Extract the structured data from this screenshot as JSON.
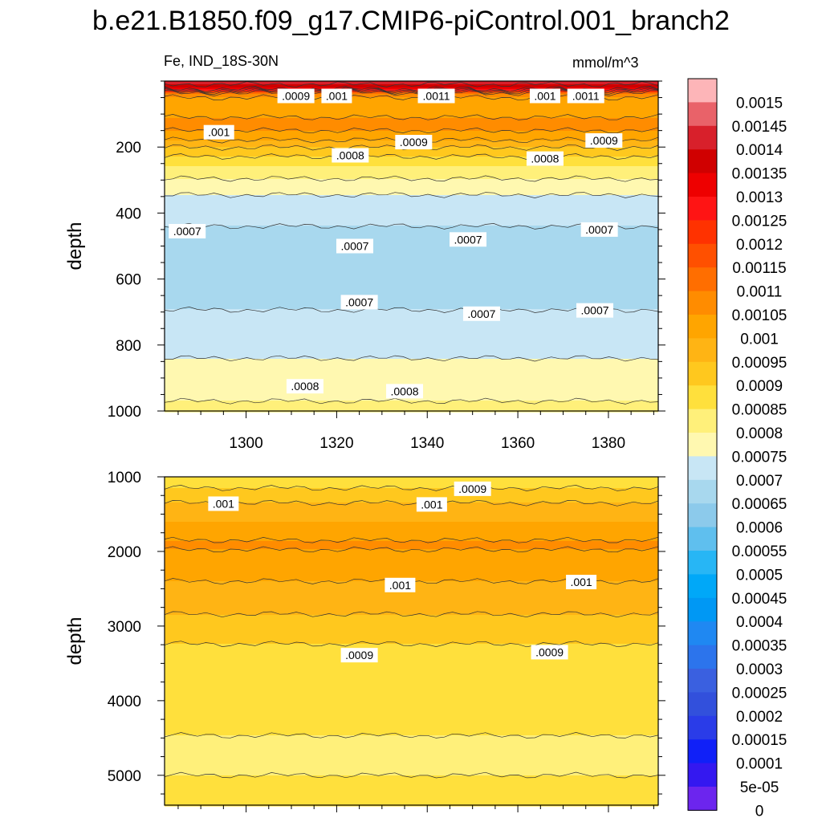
{
  "title": "b.e21.B1850.f09_g17.CMIP6-piControl.001_branch2",
  "left_string": "Fe, IND_18S-30N",
  "right_string": "mmol/m^3",
  "chart_data": [
    {
      "type": "heatmap",
      "panel": "upper",
      "variable": "Fe",
      "region": "IND_18S-30N",
      "units": "mmol/m^3",
      "xlabel": "",
      "ylabel": "depth",
      "xlim": [
        1282,
        1391
      ],
      "ylim": [
        1000,
        0
      ],
      "xticks": [
        1300,
        1320,
        1340,
        1360,
        1380
      ],
      "xtick_labels": [
        "1300",
        "1320",
        "1340",
        "1360",
        "1380"
      ],
      "yticks": [
        200,
        400,
        600,
        800,
        1000
      ],
      "ytick_labels": [
        "200",
        "400",
        "600",
        "800",
        "1000"
      ],
      "depth_profile": [
        {
          "depth": 0,
          "value": 0.00145
        },
        {
          "depth": 20,
          "value": 0.00135
        },
        {
          "depth": 40,
          "value": 0.0011
        },
        {
          "depth": 60,
          "value": 0.001
        },
        {
          "depth": 90,
          "value": 0.00102
        },
        {
          "depth": 130,
          "value": 0.00108
        },
        {
          "depth": 170,
          "value": 0.00102
        },
        {
          "depth": 210,
          "value": 0.00093
        },
        {
          "depth": 260,
          "value": 0.00085
        },
        {
          "depth": 310,
          "value": 0.00078
        },
        {
          "depth": 380,
          "value": 0.00072
        },
        {
          "depth": 500,
          "value": 0.00068
        },
        {
          "depth": 650,
          "value": 0.00069
        },
        {
          "depth": 780,
          "value": 0.00072
        },
        {
          "depth": 880,
          "value": 0.00077
        },
        {
          "depth": 1000,
          "value": 0.00081
        }
      ],
      "contour_labels": [
        {
          "text": ".0009",
          "x": 1311,
          "depth": 45
        },
        {
          "text": ".001",
          "x": 1320,
          "depth": 45
        },
        {
          "text": ".0011",
          "x": 1342,
          "depth": 45
        },
        {
          "text": ".001",
          "x": 1366,
          "depth": 45
        },
        {
          "text": ".0011",
          "x": 1375,
          "depth": 45
        },
        {
          "text": ".001",
          "x": 1294,
          "depth": 155
        },
        {
          "text": ".0009",
          "x": 1337,
          "depth": 185
        },
        {
          "text": ".0009",
          "x": 1379,
          "depth": 180
        },
        {
          "text": ".0008",
          "x": 1323,
          "depth": 225
        },
        {
          "text": ".0008",
          "x": 1366,
          "depth": 235
        },
        {
          "text": ".0007",
          "x": 1287,
          "depth": 455
        },
        {
          "text": ".0007",
          "x": 1324,
          "depth": 500
        },
        {
          "text": ".0007",
          "x": 1349,
          "depth": 480
        },
        {
          "text": ".0007",
          "x": 1378,
          "depth": 450
        },
        {
          "text": ".0007",
          "x": 1325,
          "depth": 670
        },
        {
          "text": ".0007",
          "x": 1352,
          "depth": 705
        },
        {
          "text": ".0007",
          "x": 1377,
          "depth": 695
        },
        {
          "text": ".0008",
          "x": 1313,
          "depth": 925
        },
        {
          "text": ".0008",
          "x": 1335,
          "depth": 940
        }
      ]
    },
    {
      "type": "heatmap",
      "panel": "lower",
      "variable": "Fe",
      "units": "mmol/m^3",
      "xlabel": "",
      "ylabel": "depth",
      "xlim": [
        1282,
        1391
      ],
      "ylim": [
        5400,
        1000
      ],
      "yticks": [
        1000,
        2000,
        3000,
        4000,
        5000
      ],
      "ytick_labels": [
        "1000",
        "2000",
        "3000",
        "4000",
        "5000"
      ],
      "depth_profile": [
        {
          "depth": 1000,
          "value": 0.00086
        },
        {
          "depth": 1300,
          "value": 0.00094
        },
        {
          "depth": 1600,
          "value": 0.001
        },
        {
          "depth": 1900,
          "value": 0.00106
        },
        {
          "depth": 2200,
          "value": 0.00102
        },
        {
          "depth": 2600,
          "value": 0.00098
        },
        {
          "depth": 3000,
          "value": 0.00093
        },
        {
          "depth": 3400,
          "value": 0.00088
        },
        {
          "depth": 4200,
          "value": 0.00087
        },
        {
          "depth": 4600,
          "value": 0.00084
        },
        {
          "depth": 5400,
          "value": 0.00086
        }
      ],
      "contour_labels": [
        {
          "text": ".0009",
          "x": 1350,
          "depth": 1160
        },
        {
          "text": ".001",
          "x": 1295,
          "depth": 1360
        },
        {
          "text": ".001",
          "x": 1341,
          "depth": 1370
        },
        {
          "text": ".001",
          "x": 1334,
          "depth": 2450
        },
        {
          "text": ".001",
          "x": 1374,
          "depth": 2410
        },
        {
          "text": ".0009",
          "x": 1325,
          "depth": 3390
        },
        {
          "text": ".0009",
          "x": 1367,
          "depth": 3350
        }
      ]
    }
  ],
  "colorbar": {
    "levels": [
      "0.0015",
      "0.00145",
      "0.0014",
      "0.00135",
      "0.0013",
      "0.00125",
      "0.0012",
      "0.00115",
      "0.0011",
      "0.00105",
      "0.001",
      "0.00095",
      "0.0009",
      "0.00085",
      "0.0008",
      "0.00075",
      "0.0007",
      "0.00065",
      "0.0006",
      "0.00055",
      "0.0005",
      "0.00045",
      "0.0004",
      "0.00035",
      "0.0003",
      "0.00025",
      "0.0002",
      "0.00015",
      "0.0001",
      "5e-05",
      "0"
    ],
    "colors": [
      "#fdb5b8",
      "#e96269",
      "#d8202b",
      "#d00000",
      "#ee0000",
      "#ff1414",
      "#ff3200",
      "#ff5000",
      "#ff6e00",
      "#ff8c00",
      "#ffa500",
      "#ffb414",
      "#ffc81e",
      "#ffe03c",
      "#fff07a",
      "#fff8b0",
      "#c8e6f5",
      "#a8d8ee",
      "#8ccaeb",
      "#5fbfee",
      "#27b6f5",
      "#00a8f8",
      "#0098f4",
      "#1f88f2",
      "#2c74ec",
      "#3a60e0",
      "#3250dc",
      "#2a3ce8",
      "#1020f8",
      "#3418f0",
      "#6c25ee"
    ]
  }
}
